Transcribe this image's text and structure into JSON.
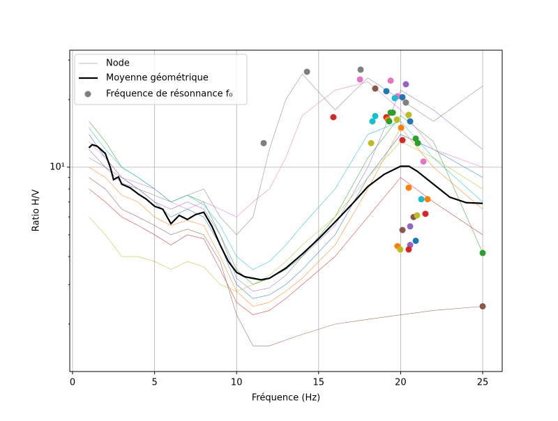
{
  "chart_data": {
    "type": "line",
    "xlabel": "Fréquence (Hz)",
    "ylabel": "Ratio H/V",
    "xlim": [
      -0.17,
      26.19
    ],
    "ylim": [
      1.23,
      33.2
    ],
    "ylog": true,
    "xticks": [
      0,
      5,
      10,
      15,
      20,
      25
    ],
    "yticks": [
      {
        "value": 10,
        "label": "10¹"
      }
    ],
    "yminorticks": [
      2,
      3,
      4,
      5,
      6,
      7,
      8,
      9,
      20,
      30
    ],
    "grid": true,
    "legend": "upper left",
    "node_curves": {
      "name": "Node",
      "x": [
        1,
        2,
        3,
        4,
        5,
        6,
        7,
        8,
        9,
        10,
        11,
        12,
        13,
        14,
        16,
        18,
        20,
        22,
        25
      ],
      "curves": [
        {
          "color": "#1f77b4",
          "values": [
            14,
            11,
            9,
            8,
            7,
            6,
            6.5,
            6,
            4.5,
            3,
            2.6,
            2.7,
            3,
            3.5,
            5,
            9,
            14,
            12,
            9
          ]
        },
        {
          "color": "#ff7f0e",
          "values": [
            10,
            9,
            7.5,
            7,
            6,
            5.5,
            5.8,
            5.5,
            4,
            2.8,
            2.4,
            2.5,
            2.8,
            3.2,
            4.5,
            8,
            15,
            10,
            6.5
          ]
        },
        {
          "color": "#2ca02c",
          "values": [
            16,
            13,
            10,
            9,
            8,
            7,
            7.5,
            7,
            5,
            3.5,
            3,
            3.2,
            3.5,
            4,
            6,
            11,
            17,
            13,
            4.15
          ]
        },
        {
          "color": "#d62728",
          "values": [
            8,
            7,
            6,
            5.5,
            5,
            4.5,
            5,
            4.8,
            3.5,
            2.5,
            2.2,
            2.3,
            2.6,
            3,
            4,
            6,
            9,
            7,
            5
          ]
        },
        {
          "color": "#9467bd",
          "values": [
            12,
            10,
            8.5,
            8,
            7,
            6.5,
            7,
            6.5,
            5,
            3.2,
            2.8,
            2.9,
            3.3,
            4,
            5.5,
            10,
            22,
            18,
            12
          ]
        },
        {
          "color": "#8c564b",
          "values": [
            9,
            8,
            6.5,
            6,
            5.5,
            5,
            5.3,
            5,
            3.8,
            2.2,
            1.6,
            1.6,
            1.7,
            1.8,
            2,
            2.1,
            2.2,
            2.3,
            2.4
          ]
        },
        {
          "color": "#e377c2",
          "values": [
            13,
            11,
            9,
            8.5,
            8,
            7,
            6.5,
            7,
            6.5,
            6,
            7,
            8,
            11,
            17,
            22,
            24,
            18,
            12,
            10
          ]
        },
        {
          "color": "#7f7f7f",
          "values": [
            11,
            10,
            9,
            8,
            7.5,
            7,
            7.5,
            8,
            6,
            5,
            6,
            12,
            20,
            26,
            18,
            25,
            20,
            16,
            23
          ]
        },
        {
          "color": "#bcbd22",
          "values": [
            6,
            5,
            4,
            4,
            3.8,
            3.5,
            3.8,
            3.6,
            3,
            2.8,
            3,
            3.3,
            3.8,
            4.5,
            6,
            9,
            13,
            11,
            8
          ]
        },
        {
          "color": "#17becf",
          "values": [
            15,
            12,
            10,
            9,
            8,
            7,
            7.5,
            6.8,
            5.5,
            4,
            3.5,
            3.8,
            4.5,
            5.5,
            8,
            14,
            16,
            11,
            7
          ]
        }
      ]
    },
    "mean": {
      "name": "Moyenne géométrique",
      "color": "#000000",
      "x": [
        1,
        1.2,
        1.5,
        2,
        2.3,
        2.5,
        2.8,
        3,
        3.5,
        4,
        4.5,
        5,
        5.5,
        6,
        6.5,
        7,
        7.5,
        8,
        8.5,
        9,
        9.5,
        10,
        10.5,
        11,
        11.5,
        12,
        13,
        14,
        15,
        16,
        17,
        18,
        19,
        20,
        20.5,
        21,
        22,
        23,
        24,
        25
      ],
      "values": [
        12.2,
        12.6,
        12.4,
        11.5,
        10,
        8.8,
        9.05,
        8.4,
        8.1,
        7.6,
        7.2,
        6.7,
        6.5,
        5.6,
        6.1,
        5.85,
        6.15,
        6.3,
        5.45,
        4.5,
        3.8,
        3.4,
        3.25,
        3.2,
        3.15,
        3.2,
        3.55,
        4.1,
        4.8,
        5.7,
        6.8,
        8.2,
        9.3,
        10.1,
        10.1,
        9.6,
        8.4,
        7.35,
        6.95,
        6.9
      ]
    },
    "resonance": {
      "name": "Fréquence de résonnance f₀",
      "legend_color": "#7f7f7f",
      "x": [
        11.65,
        14.29,
        17.56,
        15.9,
        17.52,
        18.45,
        19.39,
        20.32,
        19.13,
        19.81,
        20.11,
        19.64,
        20.32,
        18.45,
        18.28,
        19.39,
        19.52,
        19.13,
        19.22,
        19.77,
        19.3,
        20.49,
        20.58,
        20.03,
        20.11,
        18.2,
        20.92,
        21.05,
        21.39,
        20.49,
        21.26,
        21.64,
        20.79,
        21.0,
        21.51,
        20.58,
        20.11,
        20.92,
        19.81,
        20.58,
        19.98,
        20.49,
        25.0,
        25.0
      ],
      "values": [
        12.8,
        26.6,
        27.2,
        16.7,
        24.6,
        22.4,
        24.3,
        23.4,
        21.8,
        20.7,
        20.5,
        20.3,
        19.4,
        16.9,
        16.0,
        17.5,
        17.5,
        16.7,
        16.3,
        16.3,
        16.0,
        17.1,
        16.0,
        15.0,
        13.2,
        12.8,
        13.4,
        12.8,
        10.6,
        8.1,
        7.2,
        7.2,
        6.0,
        6.1,
        6.2,
        5.45,
        5.25,
        4.7,
        4.45,
        4.5,
        4.3,
        4.3,
        4.15,
        2.4
      ],
      "colors": [
        "#7f7f7f",
        "#7f7f7f",
        "#7f7f7f",
        "#d62728",
        "#e377c2",
        "#8c564b",
        "#e377c2",
        "#9467bd",
        "#1f77b4",
        "#e377c2",
        "#1f77b4",
        "#17becf",
        "#7f7f7f",
        "#17becf",
        "#17becf",
        "#2ca02c",
        "#2ca02c",
        "#d62728",
        "#ff7f0e",
        "#bcbd22",
        "#2ca02c",
        "#bcbd22",
        "#1f77b4",
        "#ff7f0e",
        "#d62728",
        "#bcbd22",
        "#2ca02c",
        "#2ca02c",
        "#e377c2",
        "#ff7f0e",
        "#17becf",
        "#ff7f0e",
        "#8c564b",
        "#bcbd22",
        "#d62728",
        "#9467bd",
        "#8c564b",
        "#1f77b4",
        "#ff7f0e",
        "#9467bd",
        "#bcbd22",
        "#d62728",
        "#2ca02c",
        "#8c564b"
      ]
    }
  }
}
